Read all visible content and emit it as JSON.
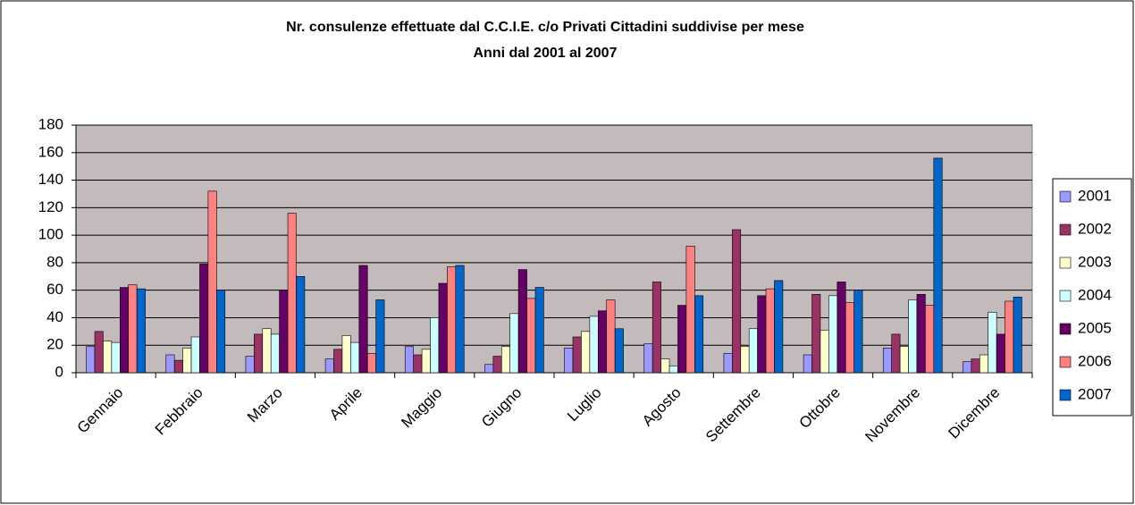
{
  "chart_data": {
    "type": "bar",
    "title": "Nr. consulenze effettuate dal C.C.I.E. c/o Privati Cittadini suddivise per mese",
    "subtitle": "Anni dal 2001 al 2007",
    "categories": [
      "Gennaio",
      "Febbraio",
      "Marzo",
      "Aprile",
      "Maggio",
      "Giugno",
      "Luglio",
      "Agosto",
      "Settembre",
      "Ottobre",
      "Novembre",
      "Dicembre"
    ],
    "series": [
      {
        "name": "2001",
        "color": "#9999ff",
        "values": [
          19,
          13,
          12,
          10,
          19,
          6,
          18,
          21,
          14,
          13,
          18,
          8
        ]
      },
      {
        "name": "2002",
        "color": "#993366",
        "values": [
          30,
          9,
          28,
          17,
          13,
          12,
          26,
          66,
          104,
          57,
          28,
          10
        ]
      },
      {
        "name": "2003",
        "color": "#ffffcc",
        "values": [
          23,
          18,
          32,
          27,
          17,
          19,
          30,
          10,
          19,
          31,
          19,
          13
        ]
      },
      {
        "name": "2004",
        "color": "#ccffff",
        "values": [
          22,
          26,
          28,
          22,
          40,
          43,
          41,
          5,
          32,
          56,
          53,
          44
        ]
      },
      {
        "name": "2005",
        "color": "#660066",
        "values": [
          62,
          79,
          60,
          78,
          65,
          75,
          45,
          49,
          56,
          66,
          57,
          28
        ]
      },
      {
        "name": "2006",
        "color": "#ff8080",
        "values": [
          64,
          132,
          116,
          14,
          77,
          54,
          53,
          92,
          61,
          51,
          49,
          52
        ]
      },
      {
        "name": "2007",
        "color": "#0066cc",
        "values": [
          61,
          60,
          70,
          53,
          78,
          62,
          32,
          56,
          67,
          60,
          156,
          55
        ]
      }
    ],
    "ylim": [
      0,
      180
    ],
    "yticks": [
      0,
      20,
      40,
      60,
      80,
      100,
      120,
      140,
      160,
      180
    ],
    "grid": true,
    "legend": "right",
    "plot_background": "#c3bbbb"
  }
}
